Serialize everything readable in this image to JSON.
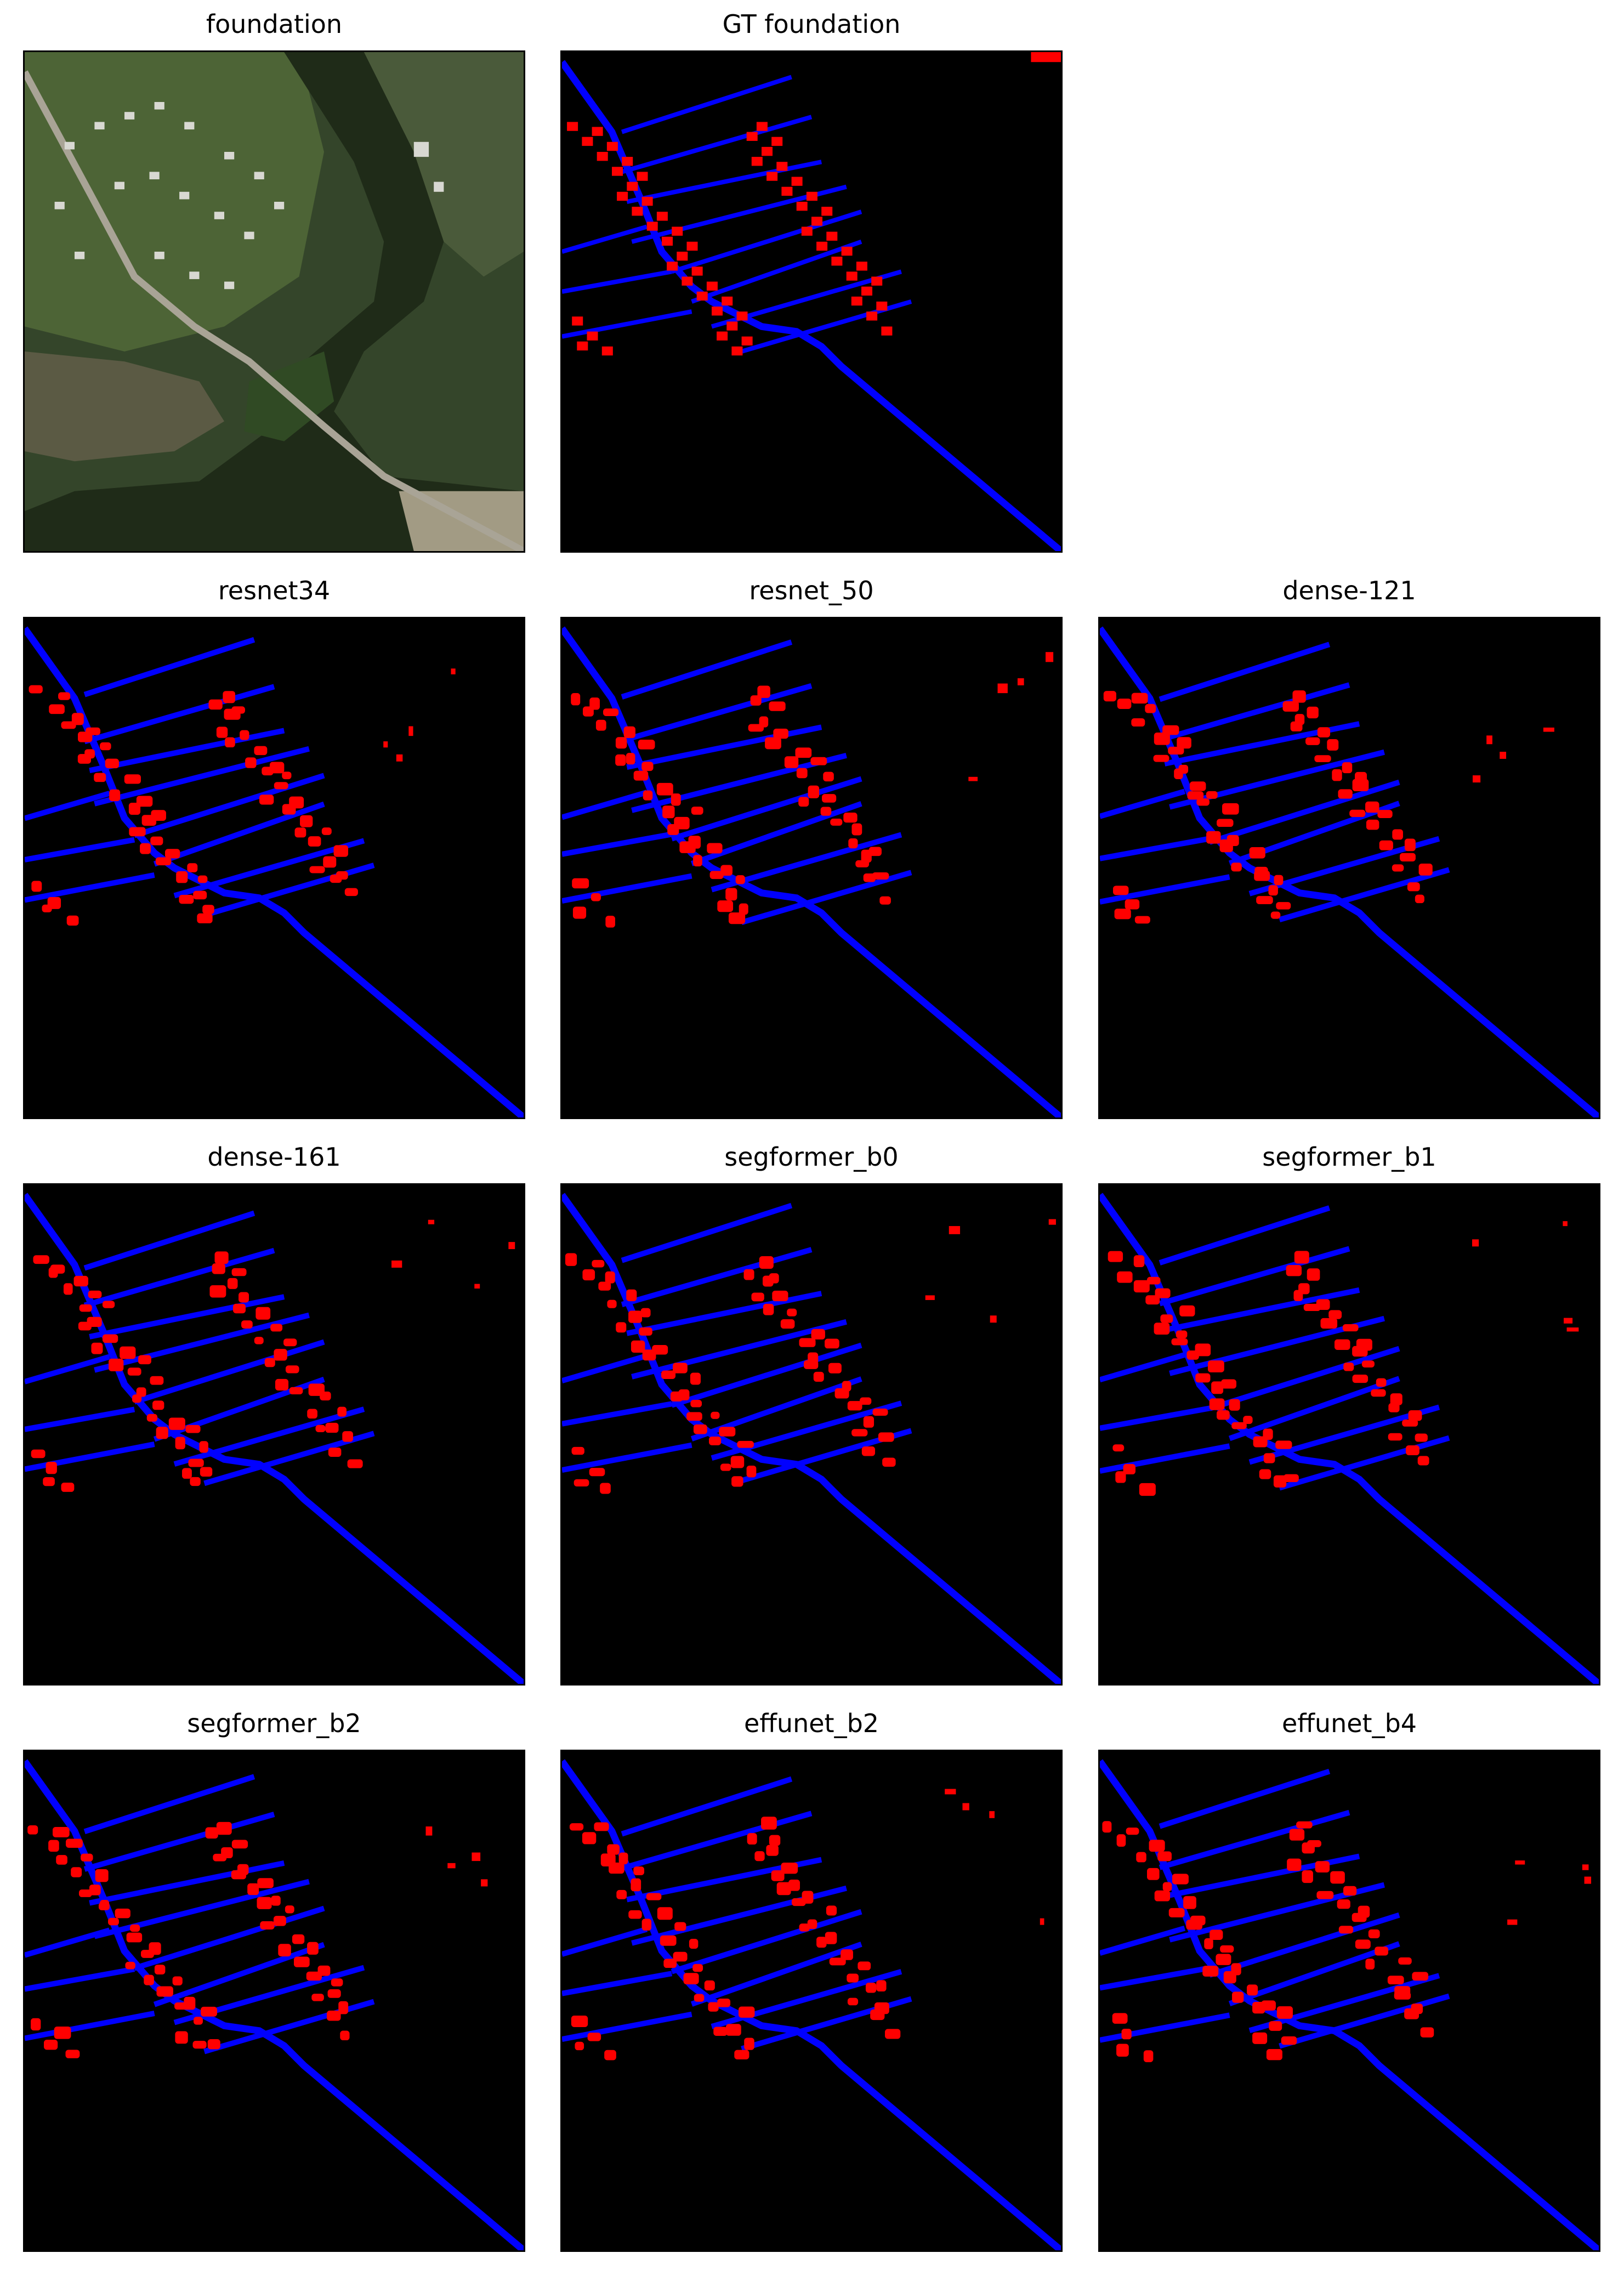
{
  "figure": {
    "panels": [
      {
        "id": "foundation",
        "title": "foundation",
        "kind": "satellite"
      },
      {
        "id": "gt",
        "title": "GT foundation",
        "kind": "mask"
      },
      {
        "id": "resnet34",
        "title": "resnet34",
        "kind": "mask"
      },
      {
        "id": "resnet_50",
        "title": "resnet_50",
        "kind": "mask"
      },
      {
        "id": "dense_121",
        "title": "dense-121",
        "kind": "mask"
      },
      {
        "id": "dense_161",
        "title": "dense-161",
        "kind": "mask"
      },
      {
        "id": "segformer_b0",
        "title": "segformer_b0",
        "kind": "mask"
      },
      {
        "id": "segformer_b1",
        "title": "segformer_b1",
        "kind": "mask"
      },
      {
        "id": "segformer_b2",
        "title": "segformer_b2",
        "kind": "mask"
      },
      {
        "id": "effunet_b2",
        "title": "effunet_b2",
        "kind": "mask"
      },
      {
        "id": "effunet_b4",
        "title": "effunet_b4",
        "kind": "mask"
      }
    ],
    "colors": {
      "background": "#000000",
      "building": "#ff0000",
      "road": "#0000ff",
      "water": "#1f2f1c",
      "vegetation": "#3b4f2c",
      "grass": "#4f6b3a",
      "bare_ground": "#8a8570"
    }
  }
}
